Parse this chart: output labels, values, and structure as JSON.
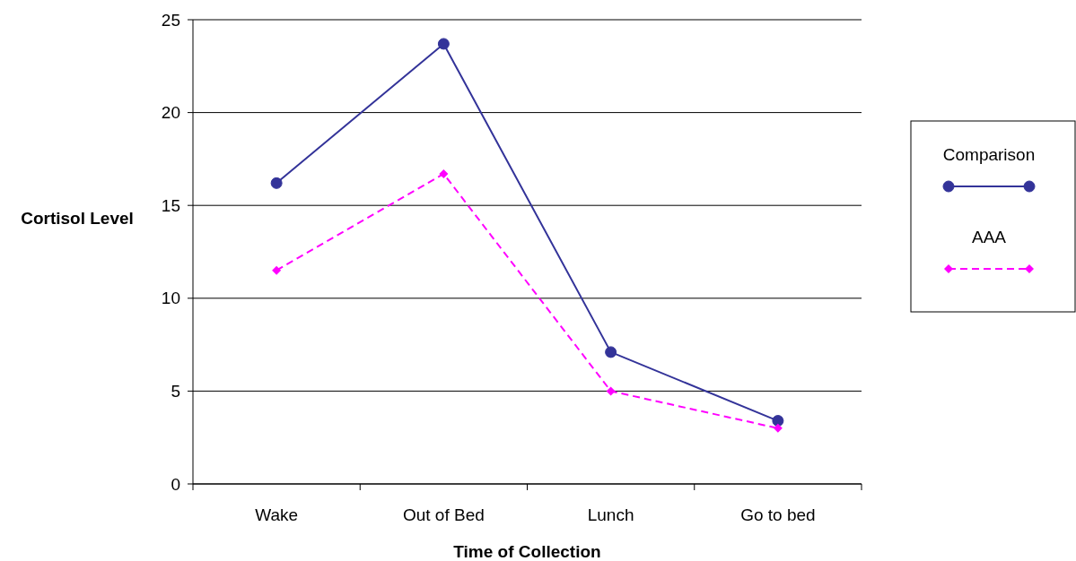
{
  "chart_data": {
    "type": "line",
    "xlabel": "Time of Collection",
    "ylabel": "Cortisol Level",
    "categories": [
      "Wake",
      "Out of Bed",
      "Lunch",
      "Go to bed"
    ],
    "series": [
      {
        "name": "Comparison",
        "color": "#333399",
        "values": [
          16.2,
          23.7,
          7.1,
          3.4
        ],
        "marker": "circle",
        "line_style": "solid"
      },
      {
        "name": "AAA",
        "color": "#ff00ff",
        "values": [
          11.5,
          16.7,
          5.0,
          3.0
        ],
        "marker": "diamond",
        "line_style": "dashed"
      }
    ],
    "ylim": [
      0,
      25
    ],
    "yticks": [
      0,
      5,
      10,
      15,
      20,
      25
    ],
    "grid": "y",
    "legend": "right"
  }
}
